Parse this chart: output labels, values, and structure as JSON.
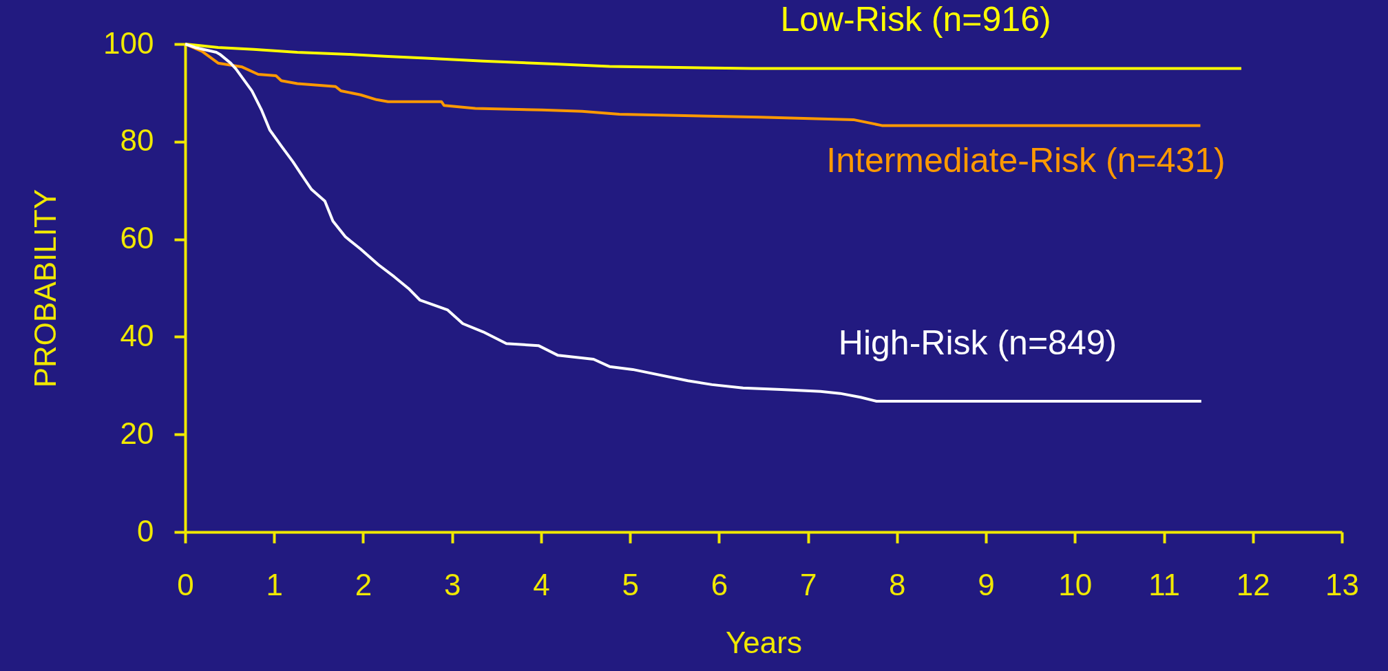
{
  "chart_data": {
    "type": "line",
    "xlabel": "Years",
    "ylabel": "PROBABILITY",
    "xlim": [
      0,
      13
    ],
    "xticks": [
      0,
      1,
      2,
      3,
      4,
      5,
      6,
      7,
      8,
      9,
      10,
      11,
      12,
      13
    ],
    "ylim": [
      0,
      100
    ],
    "yticks": [
      0,
      20,
      40,
      60,
      80,
      100
    ],
    "grid": false,
    "marker": "none",
    "line_style": "solid",
    "series": [
      {
        "name": "Low-Risk (n=916)",
        "color": "#ffff00",
        "x": [
          0,
          0.37,
          0.77,
          1.26,
          1.84,
          2.24,
          2.7,
          3.35,
          4.15,
          4.77,
          6.37,
          11.87
        ],
        "values": [
          100,
          99.3,
          98.9,
          98.3,
          97.9,
          97.5,
          97.1,
          96.5,
          95.9,
          95.4,
          95.0,
          95.0
        ]
      },
      {
        "name": "Intermediate-Risk (n=431)",
        "color": "#ff9900",
        "x": [
          0,
          0.19,
          0.37,
          0.64,
          0.82,
          1.02,
          1.08,
          1.26,
          1.69,
          1.75,
          1.97,
          2.15,
          2.28,
          2.88,
          2.91,
          3.26,
          4.01,
          4.46,
          4.88,
          6.46,
          7.51,
          7.83,
          11.41
        ],
        "values": [
          100,
          98.5,
          96.1,
          95.3,
          93.8,
          93.5,
          92.5,
          91.9,
          91.3,
          90.4,
          89.6,
          88.6,
          88.2,
          88.2,
          87.4,
          86.8,
          86.5,
          86.2,
          85.6,
          85.0,
          84.5,
          83.3,
          83.3
        ]
      },
      {
        "name": "High-Risk (n=849)",
        "color": "#ffffff",
        "x": [
          0,
          0.11,
          0.35,
          0.39,
          0.51,
          0.57,
          0.75,
          0.86,
          0.95,
          1.08,
          1.21,
          1.33,
          1.42,
          1.57,
          1.66,
          1.8,
          1.97,
          2.17,
          2.35,
          2.51,
          2.64,
          2.95,
          3.12,
          3.35,
          3.61,
          3.97,
          4.19,
          4.59,
          4.77,
          5.03,
          5.65,
          5.92,
          6.27,
          6.7,
          7.14,
          7.36,
          7.59,
          7.77,
          11.42
        ],
        "values": [
          100,
          99.3,
          98.3,
          97.9,
          96.1,
          94.9,
          90.4,
          86.4,
          82.4,
          79.1,
          75.9,
          72.6,
          70.2,
          67.8,
          63.7,
          60.5,
          58.0,
          54.8,
          52.3,
          49.9,
          47.5,
          45.5,
          42.7,
          41.0,
          38.6,
          38.2,
          36.2,
          35.4,
          33.9,
          33.3,
          31.0,
          30.2,
          29.5,
          29.2,
          28.8,
          28.4,
          27.6,
          26.8,
          26.8
        ]
      }
    ]
  }
}
